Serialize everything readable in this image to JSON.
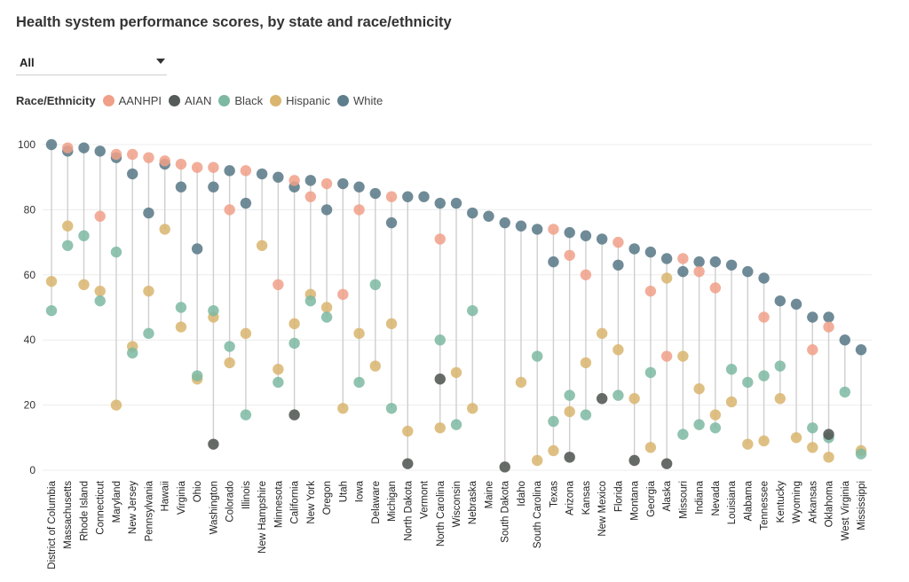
{
  "title": "Health system performance scores, by state and race/ethnicity",
  "filter": {
    "selected": "All"
  },
  "legend": {
    "title": "Race/Ethnicity",
    "items": [
      {
        "key": "AANHPI",
        "label": "AANHPI",
        "color": "#F0A088"
      },
      {
        "key": "AIAN",
        "label": "AIAN",
        "color": "#555B58"
      },
      {
        "key": "Black",
        "label": "Black",
        "color": "#7DB8A2"
      },
      {
        "key": "Hispanic",
        "label": "Hispanic",
        "color": "#D9B56E"
      },
      {
        "key": "White",
        "label": "White",
        "color": "#5F7E8C"
      }
    ]
  },
  "chart_data": {
    "type": "scatter",
    "title": "Health system performance scores, by state and race/ethnicity",
    "xlabel": "",
    "ylabel": "",
    "ylim": [
      0,
      100
    ],
    "yticks": [
      0,
      20,
      40,
      60,
      80,
      100
    ],
    "grid": true,
    "categories": [
      "District of Columbia",
      "Massachusetts",
      "Rhode Island",
      "Connecticut",
      "Maryland",
      "New Jersey",
      "Pennsylvania",
      "Hawaii",
      "Virginia",
      "Ohio",
      "Washington",
      "Colorado",
      "Illinois",
      "New Hampshire",
      "Minnesota",
      "California",
      "New York",
      "Oregon",
      "Utah",
      "Iowa",
      "Delaware",
      "Michigan",
      "North Dakota",
      "Vermont",
      "North Carolina",
      "Wisconsin",
      "Nebraska",
      "Maine",
      "South Dakota",
      "Idaho",
      "South Carolina",
      "Texas",
      "Arizona",
      "Kansas",
      "New Mexico",
      "Florida",
      "Montana",
      "Georgia",
      "Alaska",
      "Missouri",
      "Indiana",
      "Nevada",
      "Louisiana",
      "Alabama",
      "Tennessee",
      "Kentucky",
      "Wyoming",
      "Arkansas",
      "Oklahoma",
      "West Virginia",
      "Mississippi"
    ],
    "series": [
      {
        "name": "AANHPI",
        "values": [
          null,
          99,
          null,
          78,
          97,
          97,
          96,
          95,
          94,
          93,
          93,
          80,
          92,
          null,
          57,
          89,
          84,
          88,
          54,
          80,
          null,
          84,
          null,
          null,
          71,
          null,
          null,
          null,
          null,
          null,
          null,
          74,
          66,
          60,
          null,
          70,
          null,
          55,
          35,
          65,
          61,
          56,
          null,
          null,
          47,
          null,
          null,
          37,
          44,
          null,
          null
        ]
      },
      {
        "name": "AIAN",
        "values": [
          null,
          null,
          null,
          null,
          null,
          null,
          null,
          null,
          null,
          null,
          8,
          null,
          null,
          null,
          null,
          17,
          null,
          null,
          null,
          null,
          null,
          null,
          2,
          null,
          28,
          null,
          null,
          null,
          1,
          null,
          null,
          null,
          4,
          null,
          22,
          null,
          3,
          null,
          2,
          null,
          null,
          null,
          null,
          null,
          null,
          null,
          null,
          null,
          11,
          null,
          null
        ]
      },
      {
        "name": "Black",
        "values": [
          49,
          69,
          72,
          52,
          67,
          36,
          42,
          null,
          50,
          29,
          49,
          38,
          17,
          null,
          27,
          39,
          52,
          47,
          null,
          27,
          57,
          19,
          null,
          null,
          40,
          14,
          49,
          null,
          null,
          null,
          35,
          15,
          23,
          17,
          null,
          23,
          null,
          30,
          null,
          11,
          14,
          13,
          31,
          27,
          29,
          32,
          null,
          13,
          10,
          24,
          5
        ]
      },
      {
        "name": "Hispanic",
        "values": [
          58,
          75,
          57,
          55,
          20,
          38,
          55,
          74,
          44,
          28,
          47,
          33,
          42,
          69,
          31,
          45,
          54,
          50,
          19,
          42,
          32,
          45,
          12,
          null,
          13,
          30,
          19,
          null,
          null,
          27,
          3,
          6,
          18,
          33,
          42,
          37,
          22,
          7,
          59,
          35,
          25,
          17,
          21,
          8,
          9,
          22,
          10,
          7,
          4,
          null,
          6
        ]
      },
      {
        "name": "White",
        "values": [
          100,
          98,
          99,
          98,
          96,
          91,
          79,
          94,
          87,
          68,
          87,
          92,
          82,
          91,
          90,
          87,
          89,
          80,
          88,
          87,
          85,
          76,
          84,
          84,
          82,
          82,
          79,
          78,
          76,
          75,
          74,
          64,
          73,
          72,
          71,
          63,
          68,
          67,
          65,
          61,
          64,
          64,
          63,
          61,
          59,
          52,
          51,
          47,
          47,
          40,
          37
        ]
      }
    ]
  }
}
